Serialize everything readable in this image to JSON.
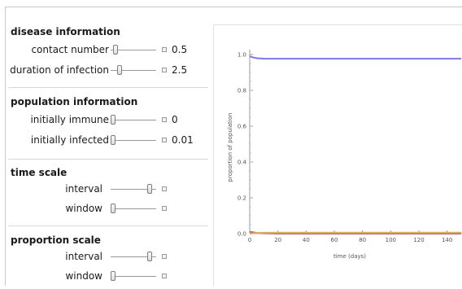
{
  "disease": {
    "title": "disease information",
    "contact_label": "contact number",
    "contact_value": "0.5",
    "contact_level": 0.05,
    "duration_label": "duration of infection",
    "duration_value": "2.5",
    "duration_level": 0.15
  },
  "population": {
    "title": "population information",
    "immune_label": "initially immune",
    "immune_value": "0",
    "immune_level": 0.0,
    "infected_label": "initially infected",
    "infected_value": "0.01",
    "infected_level": 0.0
  },
  "time": {
    "title": "time scale",
    "interval_label": "interval",
    "interval_level": 0.9,
    "window_label": "window",
    "window_level": 0.0
  },
  "proportion": {
    "title": "proportion scale",
    "interval_label": "interval",
    "interval_level": 0.9,
    "window_label": "window",
    "window_level": 0.0
  },
  "chart_data": {
    "type": "line",
    "xlabel": "time (days)",
    "ylabel": "proportion of population",
    "xlim": [
      0,
      150
    ],
    "ylim": [
      0,
      1.0
    ],
    "xticks": [
      0,
      20,
      40,
      60,
      80,
      100,
      120,
      140
    ],
    "yticks": [
      0.0,
      0.2,
      0.4,
      0.6,
      0.8,
      1.0
    ],
    "series": [
      {
        "color": "#7777ee",
        "x": [
          0,
          2,
          4,
          6,
          8,
          10,
          12,
          20,
          40,
          60,
          80,
          100,
          120,
          140,
          150
        ],
        "y": [
          0.99,
          0.985,
          0.981,
          0.979,
          0.978,
          0.977,
          0.977,
          0.977,
          0.977,
          0.977,
          0.977,
          0.977,
          0.977,
          0.977,
          0.977
        ]
      },
      {
        "color": "#c06070",
        "x": [
          0,
          2,
          4,
          6,
          8,
          10,
          15,
          20,
          40,
          150
        ],
        "y": [
          0.01,
          0.008,
          0.006,
          0.004,
          0.003,
          0.002,
          0.001,
          0.0,
          0.0,
          0.0
        ]
      },
      {
        "color": "#d7b060",
        "x": [
          0,
          5,
          10,
          20,
          40,
          150
        ],
        "y": [
          0.0,
          0.004,
          0.005,
          0.006,
          0.006,
          0.006
        ]
      }
    ]
  }
}
